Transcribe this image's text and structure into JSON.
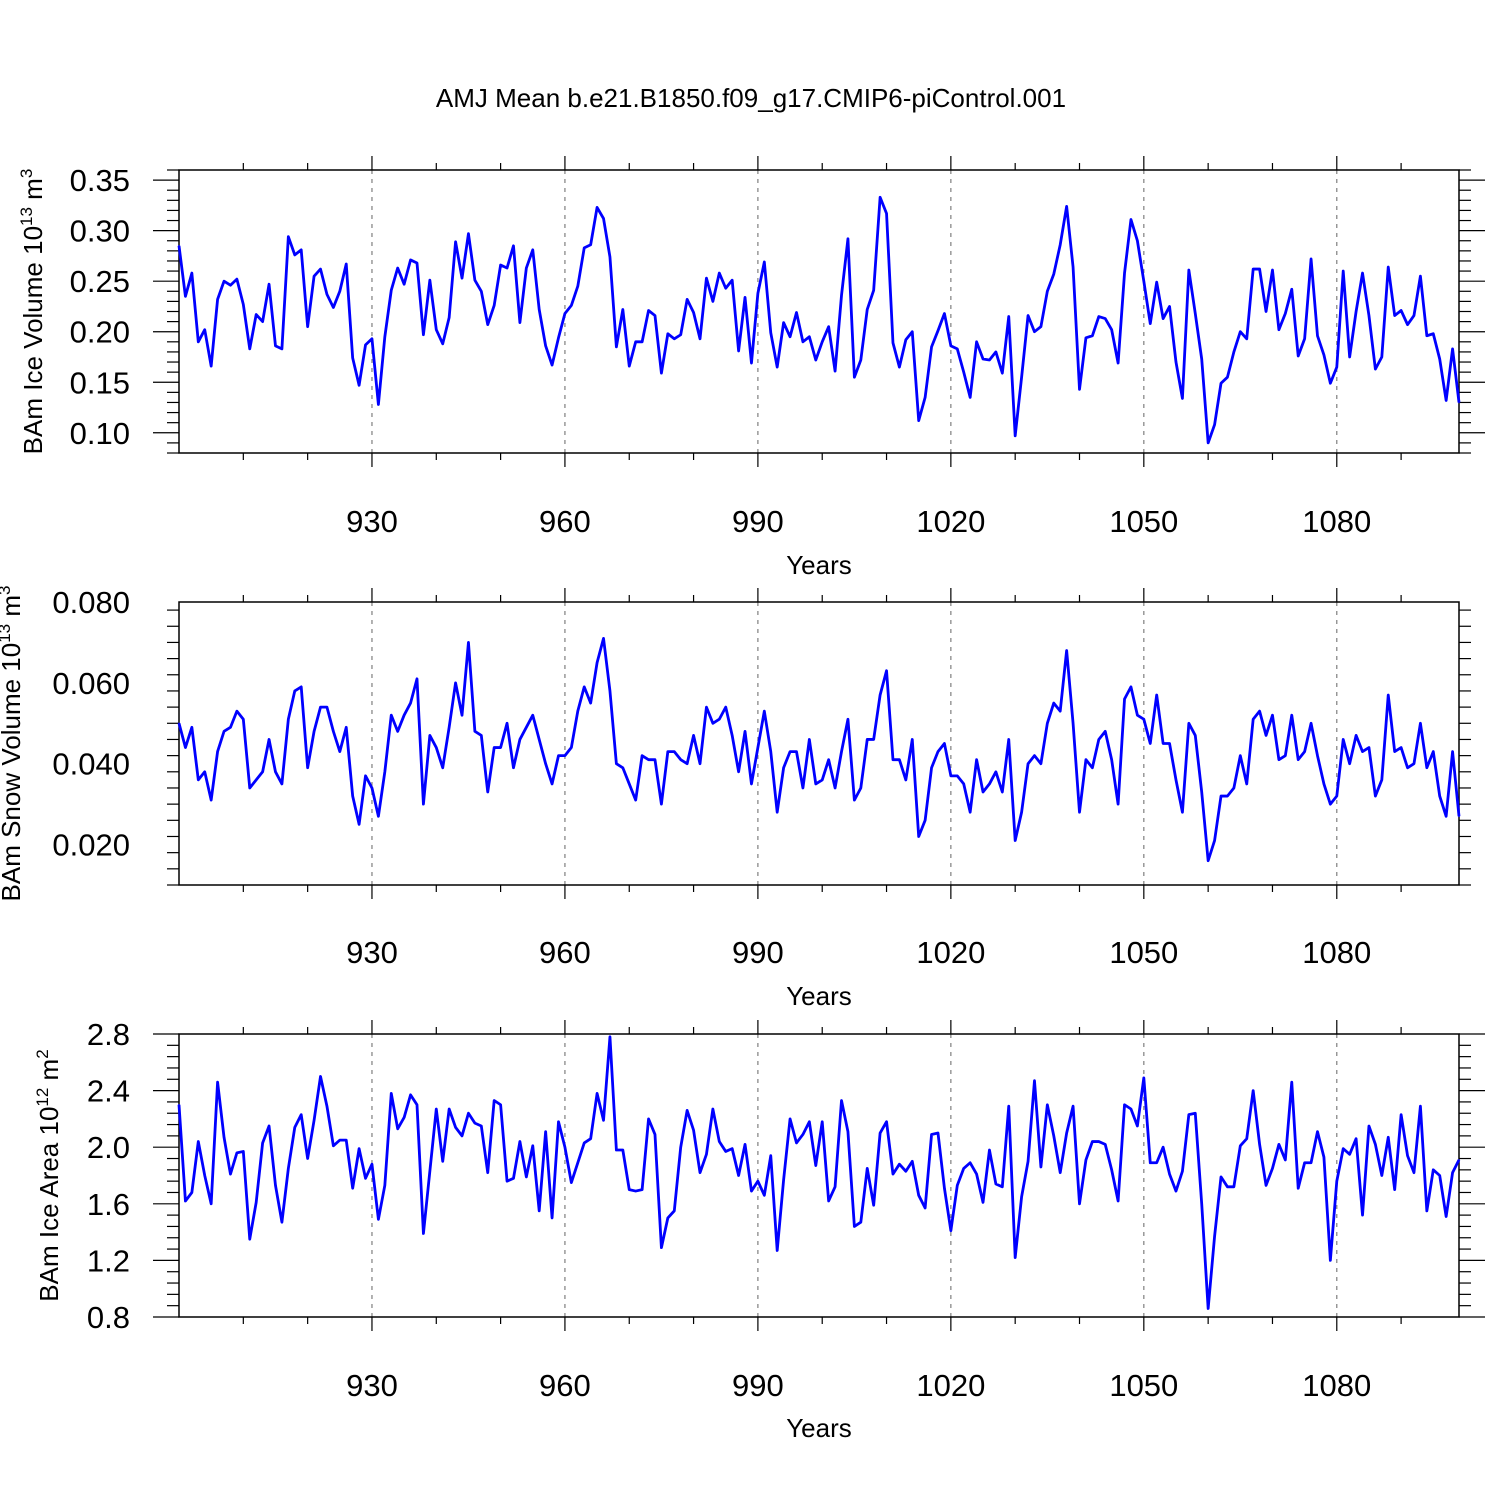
{
  "title": "AMJ Mean b.e21.B1850.f09_g17.CMIP6-piControl.001",
  "line_color": "#0000ff",
  "chart_data": [
    {
      "type": "line",
      "name": "ice-volume",
      "ylabel_main": "BAm Ice Volume 10",
      "ylabel_exp": "13",
      "ylabel_unit": " m",
      "ylabel_unit_exp": "3",
      "xlabel": "Years",
      "xlim": [
        900,
        1099
      ],
      "ylim": [
        0.08,
        0.36
      ],
      "xticks": [
        "930",
        "960",
        "990",
        "1020",
        "1050",
        "1080"
      ],
      "yticks": [
        "0.10",
        "0.15",
        "0.20",
        "0.25",
        "0.30",
        "0.35"
      ],
      "x_start": 900,
      "values": [
        0.285,
        0.235,
        0.258,
        0.19,
        0.202,
        0.166,
        0.232,
        0.25,
        0.246,
        0.252,
        0.227,
        0.183,
        0.217,
        0.21,
        0.247,
        0.186,
        0.183,
        0.294,
        0.276,
        0.281,
        0.205,
        0.255,
        0.262,
        0.237,
        0.224,
        0.24,
        0.267,
        0.174,
        0.147,
        0.187,
        0.193,
        0.128,
        0.195,
        0.241,
        0.263,
        0.247,
        0.271,
        0.268,
        0.197,
        0.251,
        0.202,
        0.188,
        0.214,
        0.289,
        0.253,
        0.297,
        0.251,
        0.24,
        0.207,
        0.226,
        0.266,
        0.263,
        0.285,
        0.209,
        0.263,
        0.281,
        0.222,
        0.186,
        0.167,
        0.194,
        0.218,
        0.226,
        0.245,
        0.283,
        0.286,
        0.323,
        0.312,
        0.274,
        0.185,
        0.222,
        0.166,
        0.19,
        0.19,
        0.221,
        0.216,
        0.159,
        0.198,
        0.193,
        0.197,
        0.232,
        0.219,
        0.193,
        0.253,
        0.23,
        0.258,
        0.243,
        0.251,
        0.181,
        0.234,
        0.169,
        0.238,
        0.269,
        0.199,
        0.165,
        0.209,
        0.195,
        0.219,
        0.19,
        0.195,
        0.172,
        0.19,
        0.205,
        0.161,
        0.236,
        0.292,
        0.155,
        0.172,
        0.222,
        0.241,
        0.333,
        0.317,
        0.189,
        0.165,
        0.192,
        0.2,
        0.112,
        0.135,
        0.185,
        0.201,
        0.218,
        0.186,
        0.183,
        0.16,
        0.135,
        0.19,
        0.173,
        0.172,
        0.18,
        0.159,
        0.215,
        0.097,
        0.155,
        0.216,
        0.2,
        0.205,
        0.24,
        0.257,
        0.286,
        0.324,
        0.264,
        0.143,
        0.194,
        0.196,
        0.215,
        0.213,
        0.202,
        0.169,
        0.258,
        0.311,
        0.29,
        0.25,
        0.208,
        0.249,
        0.213,
        0.225,
        0.17,
        0.134,
        0.261,
        0.218,
        0.173,
        0.09,
        0.108,
        0.149,
        0.155,
        0.18,
        0.2,
        0.193,
        0.262,
        0.262,
        0.22,
        0.261,
        0.202,
        0.218,
        0.242,
        0.176,
        0.193,
        0.272,
        0.196,
        0.177,
        0.149,
        0.165,
        0.26,
        0.175,
        0.22,
        0.258,
        0.216,
        0.163,
        0.175,
        0.264,
        0.216,
        0.221,
        0.207,
        0.216,
        0.255,
        0.196,
        0.198,
        0.173,
        0.132,
        0.183,
        0.13
      ]
    },
    {
      "type": "line",
      "name": "snow-volume",
      "ylabel_main": "BAm Snow Volume 10",
      "ylabel_exp": "13",
      "ylabel_unit": " m",
      "ylabel_unit_exp": "3",
      "xlabel": "Years",
      "xlim": [
        900,
        1099
      ],
      "ylim": [
        0.01,
        0.08
      ],
      "xticks": [
        "930",
        "960",
        "990",
        "1020",
        "1050",
        "1080"
      ],
      "yticks": [
        "0.020",
        "0.040",
        "0.060",
        "0.080"
      ],
      "x_start": 900,
      "values": [
        0.05,
        0.044,
        0.049,
        0.036,
        0.038,
        0.031,
        0.043,
        0.048,
        0.049,
        0.053,
        0.051,
        0.034,
        0.036,
        0.038,
        0.046,
        0.038,
        0.035,
        0.051,
        0.058,
        0.059,
        0.039,
        0.048,
        0.054,
        0.054,
        0.048,
        0.043,
        0.049,
        0.032,
        0.025,
        0.037,
        0.034,
        0.027,
        0.038,
        0.052,
        0.048,
        0.052,
        0.055,
        0.061,
        0.03,
        0.047,
        0.044,
        0.039,
        0.049,
        0.06,
        0.052,
        0.07,
        0.048,
        0.047,
        0.033,
        0.044,
        0.044,
        0.05,
        0.039,
        0.046,
        0.049,
        0.052,
        0.046,
        0.04,
        0.035,
        0.042,
        0.042,
        0.044,
        0.053,
        0.059,
        0.055,
        0.065,
        0.071,
        0.058,
        0.04,
        0.039,
        0.035,
        0.031,
        0.042,
        0.041,
        0.041,
        0.03,
        0.043,
        0.043,
        0.041,
        0.04,
        0.047,
        0.04,
        0.054,
        0.05,
        0.051,
        0.054,
        0.047,
        0.038,
        0.048,
        0.035,
        0.044,
        0.053,
        0.043,
        0.028,
        0.039,
        0.043,
        0.043,
        0.034,
        0.046,
        0.035,
        0.036,
        0.041,
        0.034,
        0.043,
        0.051,
        0.031,
        0.034,
        0.046,
        0.046,
        0.057,
        0.063,
        0.041,
        0.041,
        0.036,
        0.046,
        0.022,
        0.026,
        0.039,
        0.043,
        0.045,
        0.037,
        0.037,
        0.035,
        0.028,
        0.041,
        0.033,
        0.035,
        0.038,
        0.033,
        0.046,
        0.021,
        0.028,
        0.04,
        0.042,
        0.04,
        0.05,
        0.055,
        0.053,
        0.068,
        0.05,
        0.028,
        0.041,
        0.039,
        0.046,
        0.048,
        0.041,
        0.03,
        0.056,
        0.059,
        0.052,
        0.051,
        0.045,
        0.057,
        0.045,
        0.045,
        0.036,
        0.028,
        0.05,
        0.047,
        0.033,
        0.016,
        0.021,
        0.032,
        0.032,
        0.034,
        0.042,
        0.035,
        0.051,
        0.053,
        0.047,
        0.052,
        0.041,
        0.042,
        0.052,
        0.041,
        0.043,
        0.05,
        0.042,
        0.035,
        0.03,
        0.032,
        0.046,
        0.04,
        0.047,
        0.043,
        0.044,
        0.032,
        0.036,
        0.057,
        0.043,
        0.044,
        0.039,
        0.04,
        0.05,
        0.039,
        0.043,
        0.032,
        0.027,
        0.043,
        0.027
      ]
    },
    {
      "type": "line",
      "name": "ice-area",
      "ylabel_main": "BAm Ice Area 10",
      "ylabel_exp": "12",
      "ylabel_unit": " m",
      "ylabel_unit_exp": "2",
      "xlabel": "Years",
      "xlim": [
        900,
        1099
      ],
      "ylim": [
        0.8,
        2.8
      ],
      "xticks": [
        "930",
        "960",
        "990",
        "1020",
        "1050",
        "1080"
      ],
      "yticks": [
        "0.8",
        "1.2",
        "1.6",
        "2.0",
        "2.4",
        "2.8"
      ],
      "x_start": 900,
      "values": [
        2.3,
        1.62,
        1.68,
        2.04,
        1.8,
        1.6,
        2.46,
        2.07,
        1.81,
        1.96,
        1.97,
        1.35,
        1.61,
        2.03,
        2.15,
        1.73,
        1.47,
        1.85,
        2.14,
        2.23,
        1.92,
        2.19,
        2.5,
        2.29,
        2.01,
        2.05,
        2.05,
        1.71,
        1.99,
        1.78,
        1.88,
        1.49,
        1.73,
        2.38,
        2.13,
        2.21,
        2.37,
        2.3,
        1.39,
        1.83,
        2.27,
        1.9,
        2.27,
        2.14,
        2.08,
        2.24,
        2.17,
        2.15,
        1.82,
        2.33,
        2.3,
        1.76,
        1.78,
        2.04,
        1.79,
        2.01,
        1.55,
        2.11,
        1.5,
        2.18,
        2.0,
        1.75,
        1.89,
        2.03,
        2.06,
        2.38,
        2.19,
        2.78,
        1.98,
        1.98,
        1.7,
        1.69,
        1.7,
        2.2,
        2.09,
        1.29,
        1.5,
        1.55,
        2.0,
        2.26,
        2.12,
        1.82,
        1.95,
        2.27,
        2.04,
        1.97,
        1.99,
        1.8,
        2.02,
        1.69,
        1.76,
        1.66,
        1.94,
        1.27,
        1.77,
        2.2,
        2.03,
        2.09,
        2.18,
        1.87,
        2.18,
        1.62,
        1.72,
        2.33,
        2.11,
        1.44,
        1.47,
        1.85,
        1.59,
        2.1,
        2.18,
        1.81,
        1.88,
        1.83,
        1.9,
        1.66,
        1.57,
        2.09,
        2.1,
        1.71,
        1.41,
        1.73,
        1.85,
        1.89,
        1.81,
        1.61,
        1.98,
        1.74,
        1.72,
        2.29,
        1.22,
        1.65,
        1.9,
        2.47,
        1.86,
        2.3,
        2.08,
        1.82,
        2.1,
        2.29,
        1.6,
        1.91,
        2.04,
        2.04,
        2.02,
        1.84,
        1.62,
        2.3,
        2.27,
        2.15,
        2.49,
        1.89,
        1.89,
        2.0,
        1.81,
        1.69,
        1.83,
        2.23,
        2.24,
        1.6,
        0.86,
        1.37,
        1.79,
        1.72,
        1.72,
        2.01,
        2.06,
        2.4,
        2.02,
        1.73,
        1.85,
        2.02,
        1.91,
        2.46,
        1.71,
        1.89,
        1.89,
        2.11,
        1.93,
        1.2,
        1.76,
        1.99,
        1.95,
        2.06,
        1.52,
        2.15,
        2.02,
        1.8,
        2.07,
        1.7,
        2.23,
        1.94,
        1.82,
        2.29,
        1.55,
        1.84,
        1.8,
        1.51,
        1.82,
        1.91
      ]
    }
  ]
}
